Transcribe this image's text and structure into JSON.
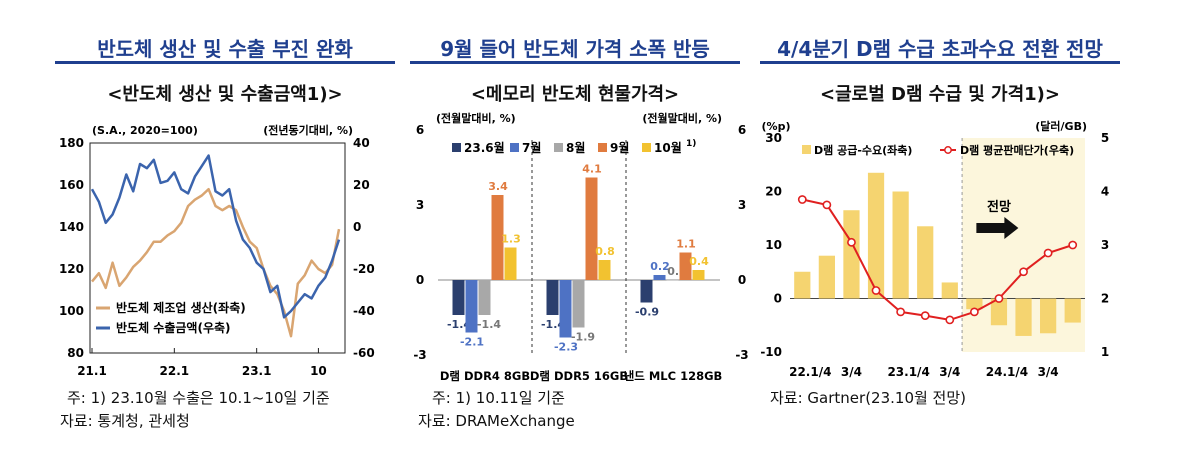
{
  "panel1": {
    "title": "반도체 생산 및 수출 부진 완화",
    "chart_title": "<반도체 생산 및 수출금액1)>",
    "note": "주: 1) 23.10월 수출은 10.1~10일 기준",
    "source": "자료: 통계청, 관세청"
  },
  "panel2": {
    "title": "9월 들어 반도체 가격 소폭 반등",
    "chart_title": "<메모리 반도체 현물가격>",
    "note": "주: 1) 10.11일 기준",
    "source": "자료: DRAMeXchange"
  },
  "panel3": {
    "title": "4/4분기 D램 수급 초과수요 전환 전망",
    "chart_title": "<글로벌 D램 수급 및 가격1)>",
    "note": "자료: Gartner(23.10월 전망)"
  },
  "chart_data": [
    {
      "type": "line",
      "left_axis_note": "(S.A., 2020=100)",
      "right_axis_note": "(전년동기대비, %)",
      "ylim_left": [
        80,
        180
      ],
      "ylim_right": [
        -60,
        40
      ],
      "left_ticks": [
        "180",
        "160",
        "140",
        "120",
        "100",
        "80"
      ],
      "right_ticks": [
        "40",
        "20",
        "0",
        "-20",
        "-40",
        "-60"
      ],
      "x_ticks": [
        "21.1",
        "22.1",
        "23.1",
        "10"
      ],
      "legend_position": "bottom-left",
      "series": [
        {
          "name": "반도체 제조업 생산(좌축)",
          "axis": "left",
          "color": "#d9a571",
          "values": [
            114,
            118,
            111,
            123,
            112,
            116,
            121,
            124,
            128,
            133,
            133,
            136,
            138,
            142,
            150,
            153,
            155,
            158,
            150,
            148,
            150,
            148,
            140,
            133,
            130,
            120,
            112,
            108,
            100,
            88,
            113,
            117,
            124,
            120,
            118,
            122,
            139
          ]
        },
        {
          "name": "반도체 수출금액(우축)",
          "axis": "right",
          "color": "#3b64ad",
          "values": [
            18,
            12,
            2,
            6,
            14,
            25,
            17,
            30,
            28,
            32,
            21,
            22,
            26,
            18,
            16,
            24,
            29,
            34,
            17,
            15,
            18,
            3,
            -6,
            -10,
            -17,
            -20,
            -31,
            -28,
            -43,
            -40,
            -36,
            -32,
            -34,
            -28,
            -24,
            -16,
            -6
          ]
        }
      ]
    },
    {
      "type": "bar",
      "y_label_left": "(전월말대비, %)",
      "y_label_right": "(전월말대비, %)",
      "ylim": [
        -3,
        6
      ],
      "y_ticks": [
        "6",
        "3",
        "0",
        "-3"
      ],
      "categories": [
        "D램 DDR4 8GB",
        "D램 DDR5 16GB",
        "낸드 MLC 128GB"
      ],
      "legend_position": "top",
      "series": [
        {
          "name": "23.6월",
          "color": "#2b3f6e",
          "values": [
            -1.4,
            -1.4,
            -0.9
          ]
        },
        {
          "name": "7월",
          "color": "#4e72c4",
          "values": [
            -2.1,
            -2.3,
            0.2
          ]
        },
        {
          "name": "8월",
          "color": "#a8a8a8",
          "values": [
            -1.4,
            -1.9,
            0.0
          ]
        },
        {
          "name": "9월",
          "color": "#e07b3f",
          "values": [
            3.4,
            4.1,
            1.1
          ]
        },
        {
          "name": "10월",
          "legend_sup": "1)",
          "color": "#f2c230",
          "values": [
            1.3,
            0.8,
            0.4
          ]
        }
      ],
      "data_labels": [
        [
          "-1.4",
          "-2.1",
          "-1.4",
          "3.4",
          "1.3"
        ],
        [
          "-1.4",
          "-2.3",
          "-1.9",
          "4.1",
          "0.8"
        ],
        [
          "-0.9",
          "0.2",
          "0.0",
          "1.1",
          "0.4"
        ]
      ]
    },
    {
      "type": "bar",
      "left_axis_note": "(%p)",
      "right_axis_note": "(달러/GB)",
      "ylim_left": [
        -10,
        30
      ],
      "ylim_right": [
        1,
        5
      ],
      "left_ticks": [
        "30",
        "20",
        "10",
        "0",
        "-10"
      ],
      "right_ticks": [
        "5",
        "4",
        "3",
        "2",
        "1"
      ],
      "x_ticks": [
        "22.1/4",
        "3/4",
        "23.1/4",
        "3/4",
        "24.1/4",
        "3/4"
      ],
      "forecast_label": "전망",
      "legend_position": "top",
      "series": [
        {
          "name": "D램 공급-수요(좌축)",
          "type": "bar",
          "axis": "left",
          "color": "#f5d470",
          "values": [
            5,
            8,
            16.5,
            23.5,
            20,
            13.5,
            3,
            -2,
            -5,
            -7,
            -6.5,
            -4.5
          ]
        },
        {
          "name": "D램 평균판매단가(우축)",
          "type": "line",
          "axis": "right",
          "color": "#e02020",
          "values": [
            3.85,
            3.75,
            3.05,
            2.15,
            1.75,
            1.68,
            1.6,
            1.75,
            2.0,
            2.5,
            2.85,
            3.0
          ]
        }
      ]
    }
  ]
}
